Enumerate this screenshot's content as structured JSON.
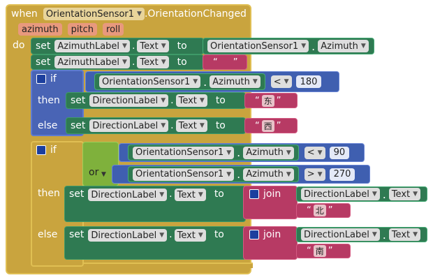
{
  "event": {
    "when": "when",
    "component": "OrientationSensor1",
    "event_name": ".OrientationChanged",
    "params": [
      "azimuth",
      "pitch",
      "roll"
    ],
    "do": "do"
  },
  "kw": {
    "set": "set",
    "to": "to",
    "if": "if",
    "then": "then",
    "else": "else",
    "or": "or",
    "join": "join",
    "dot": ".",
    "text_prop": "Text"
  },
  "labels": {
    "azimuth_label": "AzimuthLabel",
    "direction_label": "DirectionLabel",
    "sensor": "OrientationSensor1",
    "azimuth_prop": "Azimuth"
  },
  "strings": {
    "empty": " ",
    "east": "东",
    "west": "西",
    "north": "北",
    "south": "南",
    "quote_open": "“",
    "quote_close": "”"
  },
  "ops": {
    "lt": "<",
    "gt": ">"
  },
  "numbers": {
    "n180": "180",
    "n90": "90",
    "n270": "270"
  },
  "colors": {
    "event": "#c9a43e",
    "set_block": "#2f7a52",
    "control": "#4964b5",
    "math": "#3f5fb0",
    "logic": "#7fb13c",
    "text": "#b73a64"
  }
}
